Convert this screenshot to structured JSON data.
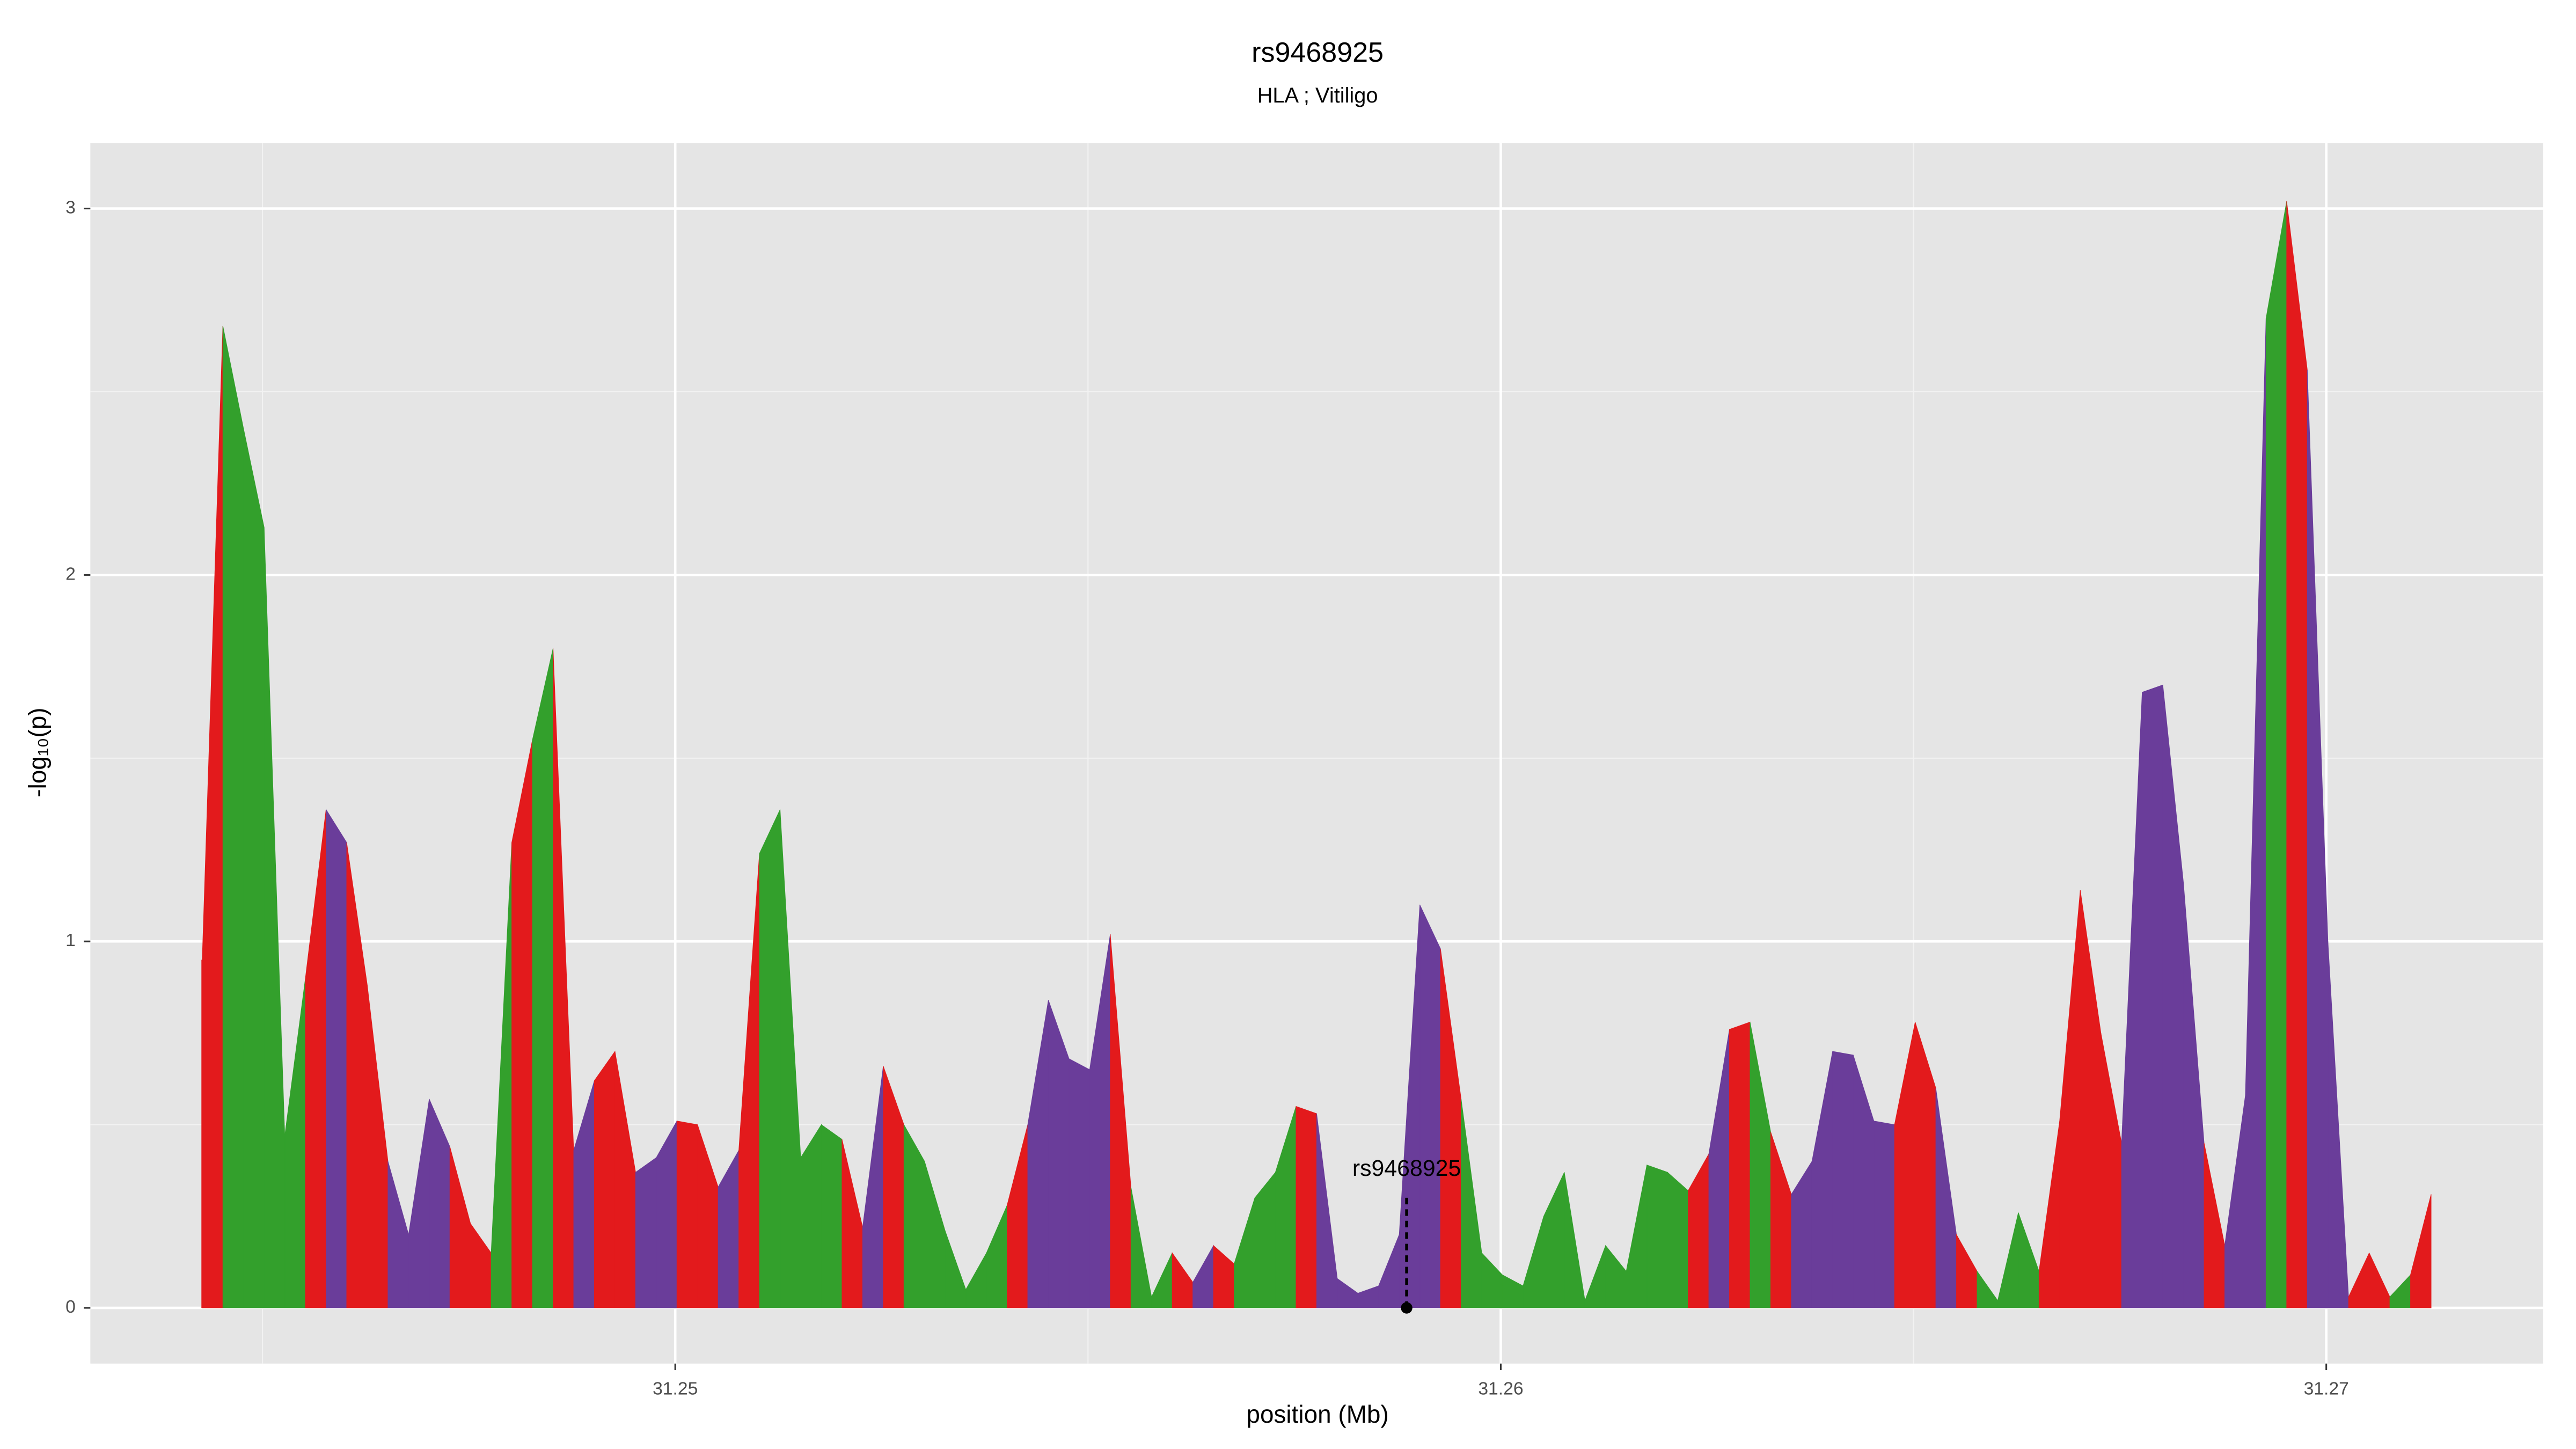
{
  "chart_data": {
    "type": "area",
    "title": "rs9468925",
    "subtitle": "HLA ; Vitiligo",
    "xlabel": "position (Mb)",
    "ylabel": "-log₁₀(p)",
    "x": [
      31.24427,
      31.24452,
      31.24477,
      31.24502,
      31.24527,
      31.24552,
      31.24577,
      31.24602,
      31.24627,
      31.24652,
      31.24677,
      31.24702,
      31.24727,
      31.24752,
      31.24777,
      31.24802,
      31.24827,
      31.24852,
      31.24877,
      31.24902,
      31.24927,
      31.24952,
      31.24977,
      31.25002,
      31.25027,
      31.25052,
      31.25077,
      31.25102,
      31.25127,
      31.25152,
      31.25177,
      31.25202,
      31.25227,
      31.25252,
      31.25277,
      31.25302,
      31.25327,
      31.25352,
      31.25377,
      31.25402,
      31.25427,
      31.25452,
      31.25477,
      31.25502,
      31.25527,
      31.25552,
      31.25577,
      31.25602,
      31.25627,
      31.25652,
      31.25677,
      31.25702,
      31.25727,
      31.25752,
      31.25777,
      31.25802,
      31.25827,
      31.25852,
      31.25877,
      31.25902,
      31.25927,
      31.25952,
      31.25977,
      31.26002,
      31.26027,
      31.26052,
      31.26077,
      31.26102,
      31.26127,
      31.26152,
      31.26177,
      31.26202,
      31.26227,
      31.26252,
      31.26277,
      31.26302,
      31.26327,
      31.26352,
      31.26377,
      31.26402,
      31.26427,
      31.26452,
      31.26477,
      31.26502,
      31.26527,
      31.26552,
      31.26577,
      31.26602,
      31.26627,
      31.26652,
      31.26677,
      31.26702,
      31.26727,
      31.26752,
      31.26777,
      31.26802,
      31.26827,
      31.26852,
      31.26877,
      31.26902,
      31.26927,
      31.26952,
      31.26977,
      31.27002,
      31.27027,
      31.27052,
      31.27077,
      31.27102,
      31.27127
    ],
    "values": [
      0.95,
      2.68,
      2.4,
      2.13,
      0.47,
      0.9,
      1.36,
      1.27,
      0.88,
      0.4,
      0.2,
      0.57,
      0.44,
      0.23,
      0.15,
      1.27,
      1.55,
      1.8,
      0.43,
      0.62,
      0.7,
      0.37,
      0.41,
      0.51,
      0.5,
      0.33,
      0.43,
      1.24,
      1.36,
      0.41,
      0.5,
      0.46,
      0.22,
      0.66,
      0.5,
      0.4,
      0.21,
      0.05,
      0.15,
      0.28,
      0.5,
      0.84,
      0.68,
      0.65,
      1.02,
      0.33,
      0.03,
      0.15,
      0.07,
      0.17,
      0.12,
      0.3,
      0.37,
      0.55,
      0.53,
      0.08,
      0.04,
      0.06,
      0.2,
      1.1,
      0.98,
      0.57,
      0.15,
      0.09,
      0.06,
      0.25,
      0.37,
      0.02,
      0.17,
      0.1,
      0.39,
      0.37,
      0.32,
      0.42,
      0.76,
      0.78,
      0.48,
      0.31,
      0.4,
      0.7,
      0.69,
      0.51,
      0.5,
      0.78,
      0.6,
      0.2,
      0.1,
      0.02,
      0.26,
      0.1,
      0.51,
      1.14,
      0.75,
      0.45,
      1.68,
      1.7,
      1.16,
      0.45,
      0.17,
      0.58,
      2.7,
      3.02,
      2.56,
      1.0,
      0.03,
      0.15,
      0.03,
      0.09,
      0.31
    ],
    "colors": [
      "#e31a1c",
      "#e31a1c",
      "#33a02c",
      "#33a02c",
      "#33a02c",
      "#33a02c",
      "#e31a1c",
      "#6a3d9a",
      "#e31a1c",
      "#e31a1c",
      "#6a3d9a",
      "#6a3d9a",
      "#6a3d9a",
      "#e31a1c",
      "#e31a1c",
      "#33a02c",
      "#e31a1c",
      "#33a02c",
      "#e31a1c",
      "#6a3d9a",
      "#e31a1c",
      "#e31a1c",
      "#6a3d9a",
      "#6a3d9a",
      "#e31a1c",
      "#e31a1c",
      "#6a3d9a",
      "#e31a1c",
      "#33a02c",
      "#33a02c",
      "#33a02c",
      "#33a02c",
      "#e31a1c",
      "#6a3d9a",
      "#e31a1c",
      "#33a02c",
      "#33a02c",
      "#33a02c",
      "#33a02c",
      "#33a02c",
      "#e31a1c",
      "#6a3d9a",
      "#6a3d9a",
      "#6a3d9a",
      "#6a3d9a",
      "#e31a1c",
      "#33a02c",
      "#33a02c",
      "#e31a1c",
      "#6a3d9a",
      "#e31a1c",
      "#33a02c",
      "#33a02c",
      "#33a02c",
      "#e31a1c",
      "#6a3d9a",
      "#6a3d9a",
      "#6a3d9a",
      "#6a3d9a",
      "#6a3d9a",
      "#6a3d9a",
      "#e31a1c",
      "#33a02c",
      "#33a02c",
      "#33a02c",
      "#33a02c",
      "#33a02c",
      "#33a02c",
      "#33a02c",
      "#33a02c",
      "#33a02c",
      "#33a02c",
      "#33a02c",
      "#e31a1c",
      "#6a3d9a",
      "#e31a1c",
      "#33a02c",
      "#e31a1c",
      "#6a3d9a",
      "#6a3d9a",
      "#6a3d9a",
      "#6a3d9a",
      "#6a3d9a",
      "#e31a1c",
      "#e31a1c",
      "#6a3d9a",
      "#e31a1c",
      "#33a02c",
      "#33a02c",
      "#33a02c",
      "#e31a1c",
      "#e31a1c",
      "#e31a1c",
      "#e31a1c",
      "#6a3d9a",
      "#6a3d9a",
      "#6a3d9a",
      "#6a3d9a",
      "#e31a1c",
      "#6a3d9a",
      "#6a3d9a",
      "#33a02c",
      "#e31a1c",
      "#6a3d9a",
      "#6a3d9a",
      "#e31a1c",
      "#e31a1c",
      "#33a02c",
      "#e31a1c"
    ],
    "annotation": {
      "label": "rs9468925",
      "x": 31.25886,
      "y": 0
    },
    "xlim": [
      31.242915,
      31.272627
    ],
    "ylim": [
      -0.152,
      3.179
    ],
    "xticks": [
      31.25,
      31.26,
      31.27
    ],
    "yticks": [
      0,
      1,
      2,
      3
    ],
    "grid": true
  }
}
